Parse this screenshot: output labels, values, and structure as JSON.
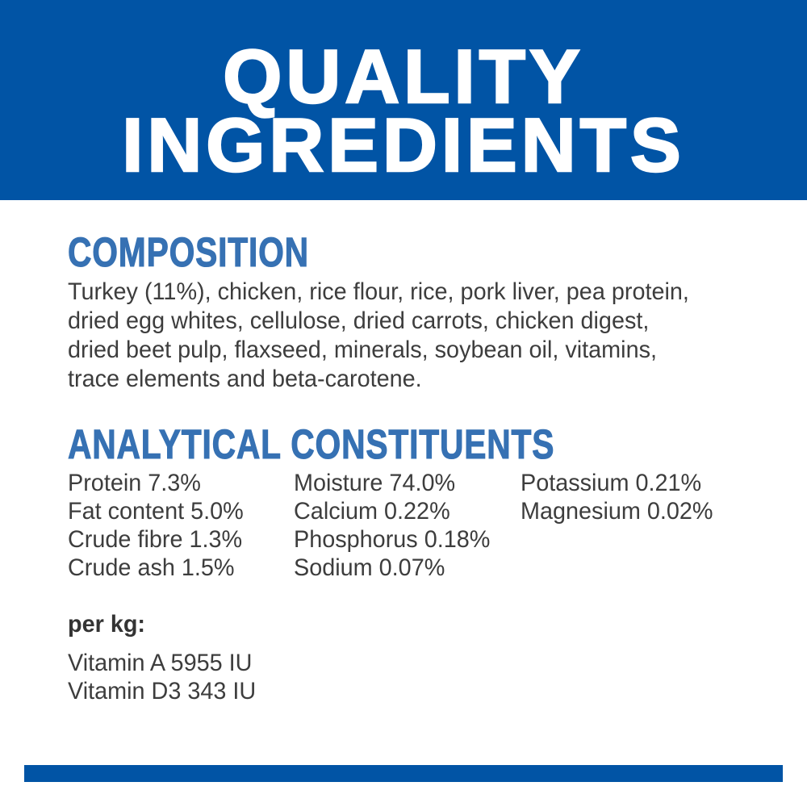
{
  "colors": {
    "brand_blue": "#0154a5",
    "heading_blue": "#3671b3",
    "body_text": "#3d3d3d",
    "banner_text": "#ffffff"
  },
  "banner": {
    "title_line1": "QUALITY",
    "title_line2": "INGREDIENTS"
  },
  "composition": {
    "heading": "COMPOSITION",
    "text": "Turkey (11%), chicken, rice flour, rice, pork liver, pea protein, dried egg whites, cellulose, dried carrots, chicken digest, dried beet pulp, flaxseed, minerals, soybean oil, vitamins, trace elements and beta-carotene.",
    "lines": [
      "Turkey (11%), chicken, rice flour, rice, pork liver, pea protein,",
      "dried egg whites, cellulose, dried carrots, chicken digest,",
      "dried beet pulp, flaxseed, minerals, soybean oil, vitamins,",
      "trace elements and beta-carotene."
    ]
  },
  "analytical": {
    "heading": "ANALYTICAL CONSTITUENTS",
    "columns": [
      {
        "items": [
          "Protein 7.3%",
          "Fat content 5.0%",
          "Crude fibre 1.3%",
          "Crude ash 1.5%"
        ]
      },
      {
        "items": [
          "Moisture 74.0%",
          "Calcium 0.22%",
          "Phosphorus 0.18%",
          "Sodium 0.07%"
        ]
      },
      {
        "items": [
          "Potassium 0.21%",
          "Magnesium 0.02%"
        ]
      }
    ]
  },
  "per_kg": {
    "label": "per kg:",
    "items": [
      "Vitamin A 5955 IU",
      "Vitamin D3 343 IU"
    ]
  }
}
